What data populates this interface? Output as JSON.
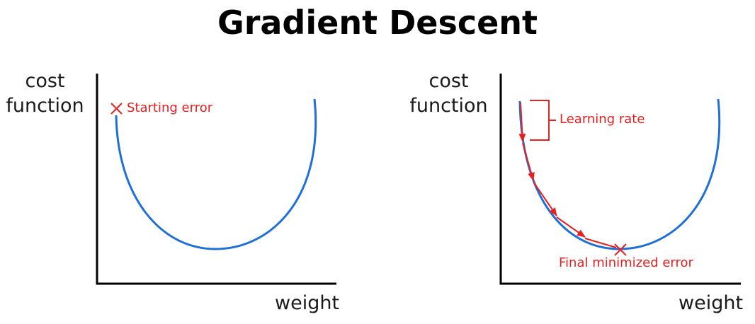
{
  "title": "Gradient Descent",
  "colors": {
    "curve": "#1f6fd8",
    "annotation": "#e8201f",
    "axis": "#000000",
    "text": "#1a1a1a"
  },
  "left_panel": {
    "ylabel_line1": "cost",
    "ylabel_line2": "function",
    "xlabel": "weight",
    "annotation": "Starting error"
  },
  "right_panel": {
    "ylabel_line1": "cost",
    "ylabel_line2": "function",
    "xlabel": "weight",
    "learning_rate_label": "Learning rate",
    "final_label": "Final minimized error"
  }
}
